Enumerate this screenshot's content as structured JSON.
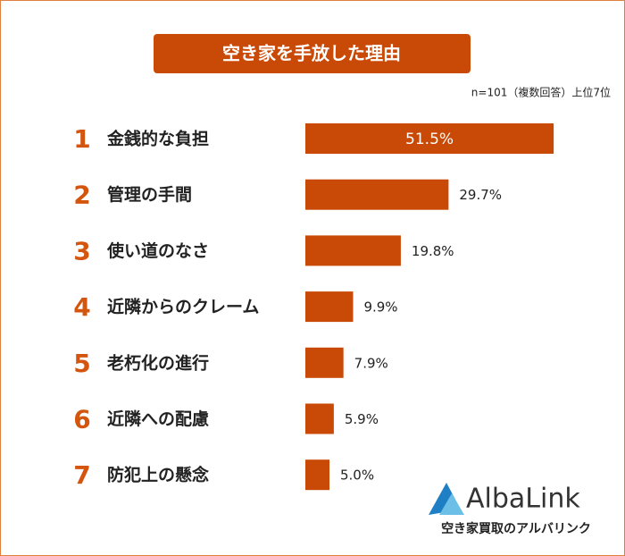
{
  "chart_data": {
    "type": "bar",
    "orientation": "horizontal",
    "title": "空き家を手放した理由",
    "subtitle": "n=101（複数回答）上位7位",
    "ranks": [
      1,
      2,
      3,
      4,
      5,
      6,
      7
    ],
    "categories": [
      "金銭的な負担",
      "管理の手間",
      "使い道のなさ",
      "近隣からのクレーム",
      "老朽化の進行",
      "近隣への配慮",
      "防犯上の懸念"
    ],
    "values": [
      51.5,
      29.7,
      19.8,
      9.9,
      7.9,
      5.9,
      5.0
    ],
    "value_labels": [
      "51.5%",
      "29.7%",
      "19.8%",
      "9.9%",
      "7.9%",
      "5.9%",
      "5.0%"
    ],
    "color": "#c94a06"
  },
  "logo": {
    "name": "AlbaLink",
    "tagline": "空き家買取のアルバリンク"
  }
}
